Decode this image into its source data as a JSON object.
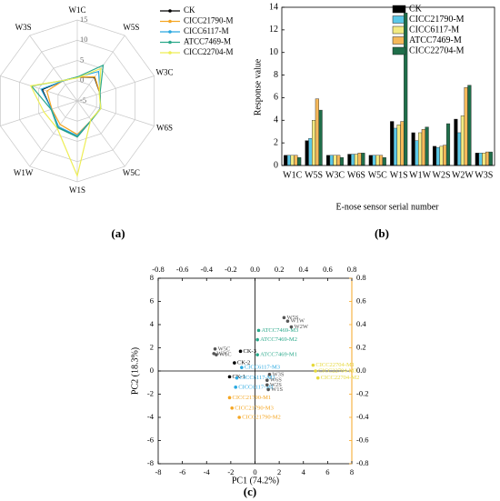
{
  "chart_data": [
    {
      "type": "radar",
      "panel": "(a)",
      "categories": [
        "W1C",
        "W5S",
        "W3C",
        "W6S",
        "W5C",
        "W1S",
        "W1W",
        "W2S",
        "W2W",
        "W3S"
      ],
      "rlim": [
        -5,
        15
      ],
      "rticks": [
        -5,
        0,
        5,
        10,
        15
      ],
      "series": [
        {
          "name": "CK",
          "color": "#000000",
          "values": [
            0.9,
            2.2,
            0.9,
            1.0,
            0.9,
            3.9,
            2.9,
            1.7,
            4.1,
            1.1
          ]
        },
        {
          "name": "CICC21790-M",
          "color": "#f5a623",
          "values": [
            0.9,
            2.4,
            0.9,
            1.0,
            0.9,
            3.3,
            2.2,
            1.6,
            2.9,
            1.1
          ]
        },
        {
          "name": "CICC6117-M",
          "color": "#29a8e0",
          "values": [
            0.9,
            4.0,
            0.9,
            1.0,
            0.9,
            3.6,
            2.9,
            1.7,
            4.4,
            1.1
          ]
        },
        {
          "name": "ATCC7469-M",
          "color": "#2aa88a",
          "values": [
            0.9,
            5.9,
            0.9,
            1.1,
            0.9,
            3.9,
            3.2,
            1.8,
            6.9,
            1.2
          ]
        },
        {
          "name": "CICC22704-M",
          "color": "#eeee55",
          "values": [
            0.7,
            4.9,
            0.7,
            1.1,
            0.7,
            13.5,
            3.4,
            3.7,
            7.1,
            1.2
          ]
        }
      ]
    },
    {
      "type": "bar",
      "panel": "(b)",
      "xlabel": "E-nose sensor serial number",
      "ylabel": "Response value",
      "categories": [
        "W1C",
        "W5S",
        "W3C",
        "W6S",
        "W5C",
        "W1S",
        "W1W",
        "W2S",
        "W2W",
        "W3S"
      ],
      "ylim": [
        0,
        14
      ],
      "yticks": [
        0,
        2,
        4,
        6,
        8,
        10,
        12,
        14
      ],
      "series": [
        {
          "name": "CK",
          "color": "#000000",
          "values": [
            0.9,
            2.2,
            0.9,
            1.0,
            0.9,
            3.9,
            2.9,
            1.7,
            4.1,
            1.1
          ]
        },
        {
          "name": "CICC21790-M",
          "color": "#5bc8e8",
          "values": [
            0.9,
            2.4,
            0.9,
            1.0,
            0.9,
            3.3,
            2.2,
            1.6,
            2.9,
            1.1
          ]
        },
        {
          "name": "CICC6117-M",
          "color": "#f2ea82",
          "values": [
            0.9,
            4.0,
            0.9,
            1.0,
            0.9,
            3.6,
            2.9,
            1.7,
            4.4,
            1.1
          ]
        },
        {
          "name": "ATCC7469-M",
          "color": "#f5b85a",
          "values": [
            0.9,
            5.9,
            0.9,
            1.1,
            0.9,
            3.9,
            3.2,
            1.8,
            6.9,
            1.2
          ]
        },
        {
          "name": "CICC22704-M",
          "color": "#1f6e4a",
          "values": [
            0.7,
            4.9,
            0.7,
            1.1,
            0.7,
            13.5,
            3.4,
            3.7,
            7.1,
            1.2
          ]
        }
      ]
    },
    {
      "type": "scatter",
      "panel": "(c)",
      "xlabel": "PC1 (74.2%)",
      "ylabel": "PC2 (18.3%)",
      "xlim": [
        -8,
        8
      ],
      "xticks": [
        -8,
        -6,
        -4,
        -2,
        0,
        2,
        4,
        6,
        8
      ],
      "ylim": [
        -8,
        8
      ],
      "yticks": [
        -8,
        -6,
        -4,
        -2,
        0,
        2,
        4,
        6,
        8
      ],
      "x2lim": [
        -0.8,
        0.8
      ],
      "x2ticks": [
        -0.8,
        -0.6,
        -0.4,
        -0.2,
        {
          "value": 0,
          "label": "0.0"
        },
        0.2,
        0.4,
        0.6,
        0.8
      ],
      "y2lim": [
        -0.8,
        0.8
      ],
      "y2ticks": [
        -0.8,
        -0.6,
        -0.4,
        -0.2,
        {
          "value": 0,
          "label": "0.0"
        },
        0.2,
        0.4,
        0.6,
        0.8
      ],
      "y2_color": "#f5a623",
      "series": [
        {
          "color": "#000000",
          "labels": [
            "CK-1",
            "CK-2",
            "CK-3"
          ],
          "x": [
            -2.1,
            -1.7,
            -1.2
          ],
          "y": [
            -0.5,
            0.7,
            1.7
          ]
        },
        {
          "color": "#29a8e0",
          "labels": [
            "CICC6117-M1",
            "CICC6117-M2",
            "CICC6117-M3"
          ],
          "x": [
            -1.6,
            -1.5,
            -1.1
          ],
          "y": [
            -1.4,
            -0.6,
            0.3
          ]
        },
        {
          "color": "#f5a623",
          "labels": [
            "CICC21790-M1",
            "CICC21790-M3",
            "CICC21790-M2"
          ],
          "x": [
            -2.1,
            -1.9,
            -1.3
          ],
          "y": [
            -2.3,
            -3.2,
            -4.0
          ]
        },
        {
          "color": "#2aa88a",
          "labels": [
            "ATCC7469-M1",
            "ATCC7469-M2",
            "ATCC7469-M3"
          ],
          "x": [
            0.2,
            0.2,
            0.3
          ],
          "y": [
            1.4,
            2.7,
            3.5
          ]
        },
        {
          "color": "#e6d93a",
          "labels": [
            "CICC22704-M1",
            "CICC22704-M3",
            "CICC22704-M2"
          ],
          "x": [
            4.8,
            5.0,
            5.2
          ],
          "y": [
            0.5,
            0.0,
            -0.6
          ]
        },
        {
          "axis": "x2y2",
          "color": "#555555",
          "labels": [
            "W5S",
            "W1W",
            "W2W",
            "W5C",
            "W3C",
            "W1C",
            "W3S",
            "W6S",
            "W2S",
            "W1S"
          ],
          "x": [
            0.24,
            0.27,
            0.3,
            -0.33,
            -0.34,
            -0.32,
            0.12,
            0.1,
            0.1,
            0.11
          ],
          "y": [
            0.46,
            0.43,
            0.38,
            0.19,
            0.15,
            0.14,
            -0.03,
            -0.08,
            -0.12,
            -0.16
          ]
        }
      ]
    }
  ]
}
